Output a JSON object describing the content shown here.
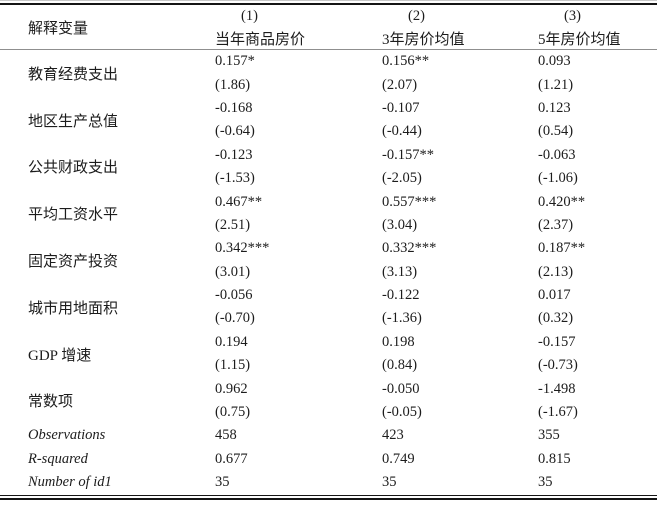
{
  "table": {
    "header": {
      "row_label": "解释变量",
      "columns": [
        {
          "num": "(1)",
          "label": "当年商品房价"
        },
        {
          "num": "(2)",
          "label": "3年房价均值"
        },
        {
          "num": "(3)",
          "label": "5年房价均值"
        }
      ]
    },
    "variables": [
      {
        "label": "教育经费支出",
        "coefs": [
          "0.157*",
          "0.156**",
          "0.093"
        ],
        "tstats": [
          "(1.86)",
          "(2.07)",
          "(1.21)"
        ]
      },
      {
        "label": "地区生产总值",
        "coefs": [
          "-0.168",
          "-0.107",
          "0.123"
        ],
        "tstats": [
          "(-0.64)",
          "(-0.44)",
          "(0.54)"
        ]
      },
      {
        "label": "公共财政支出",
        "coefs": [
          "-0.123",
          "-0.157**",
          "-0.063"
        ],
        "tstats": [
          "(-1.53)",
          "(-2.05)",
          "(-1.06)"
        ]
      },
      {
        "label": "平均工资水平",
        "coefs": [
          "0.467**",
          "0.557***",
          "0.420**"
        ],
        "tstats": [
          "(2.51)",
          "(3.04)",
          "(2.37)"
        ]
      },
      {
        "label": "固定资产投资",
        "coefs": [
          "0.342***",
          "0.332***",
          "0.187**"
        ],
        "tstats": [
          "(3.01)",
          "(3.13)",
          "(2.13)"
        ]
      },
      {
        "label": "城市用地面积",
        "coefs": [
          "-0.056",
          "-0.122",
          "0.017"
        ],
        "tstats": [
          "(-0.70)",
          "(-1.36)",
          "(0.32)"
        ]
      },
      {
        "label": "GDP 增速",
        "coefs": [
          "0.194",
          "0.198",
          "-0.157"
        ],
        "tstats": [
          "(1.15)",
          "(0.84)",
          "(-0.73)"
        ]
      },
      {
        "label": "常数项",
        "coefs": [
          "0.962",
          "-0.050",
          "-1.498"
        ],
        "tstats": [
          "(0.75)",
          "(-0.05)",
          "(-1.67)"
        ]
      }
    ],
    "stats": [
      {
        "label": "Observations",
        "values": [
          "458",
          "423",
          "355"
        ]
      },
      {
        "label": "R-squared",
        "values": [
          "0.677",
          "0.749",
          "0.815"
        ]
      },
      {
        "label": "Number of id1",
        "values": [
          "35",
          "35",
          "35"
        ]
      }
    ]
  }
}
